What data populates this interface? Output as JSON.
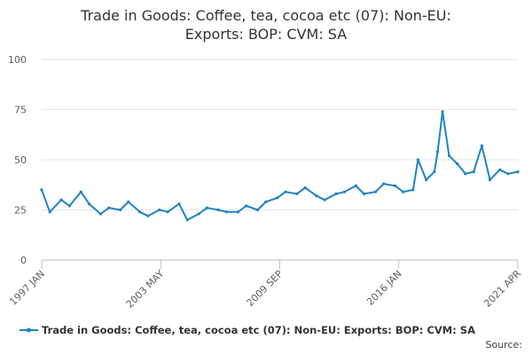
{
  "chart_data": {
    "type": "line",
    "title_line1": "Trade in Goods: Coffee, tea, cocoa etc (07): Non-EU:",
    "title_line2": "Exports: BOP: CVM: SA",
    "xlabel": "",
    "ylabel": "",
    "ylim": [
      0,
      100
    ],
    "y_ticks": [
      0,
      25,
      50,
      75,
      100
    ],
    "x_tick_labels": [
      "1997 JAN",
      "2003 MAY",
      "2009 SEP",
      "2016 JAN",
      "2021 APR"
    ],
    "x_range": [
      "1997-01",
      "2021-04"
    ],
    "grid": true,
    "legend_position": "bottom",
    "series": [
      {
        "name": "Trade in Goods: Coffee, tea, cocoa etc (07): Non-EU: Exports: BOP: CVM: SA",
        "color": "#1f83c3",
        "x": [
          "1997-01",
          "1997-06",
          "1998-01",
          "1998-06",
          "1999-01",
          "1999-06",
          "2000-01",
          "2000-06",
          "2001-01",
          "2001-06",
          "2002-01",
          "2002-06",
          "2003-01",
          "2003-06",
          "2004-01",
          "2004-06",
          "2005-01",
          "2005-06",
          "2006-01",
          "2006-06",
          "2007-01",
          "2007-06",
          "2008-01",
          "2008-06",
          "2009-01",
          "2009-06",
          "2010-01",
          "2010-06",
          "2011-01",
          "2011-06",
          "2012-01",
          "2012-06",
          "2013-01",
          "2013-06",
          "2014-01",
          "2014-06",
          "2015-01",
          "2015-06",
          "2015-12",
          "2016-03",
          "2016-08",
          "2017-01",
          "2017-03",
          "2017-06",
          "2017-10",
          "2018-03",
          "2018-08",
          "2019-01",
          "2019-06",
          "2019-11",
          "2020-05",
          "2020-10",
          "2021-04"
        ],
        "y": [
          35,
          24,
          30,
          27,
          34,
          28,
          23,
          26,
          25,
          29,
          24,
          22,
          25,
          24,
          28,
          20,
          23,
          26,
          25,
          24,
          24,
          27,
          25,
          29,
          31,
          34,
          33,
          36,
          32,
          30,
          33,
          34,
          37,
          33,
          34,
          38,
          37,
          34,
          35,
          50,
          40,
          44,
          54,
          74,
          52,
          48,
          43,
          44,
          57,
          40,
          45,
          43,
          44
        ]
      }
    ]
  },
  "legend": {
    "label": "Trade in Goods: Coffee, tea, cocoa etc (07): Non-EU: Exports: BOP: CVM: SA"
  },
  "source_label": "Source:"
}
